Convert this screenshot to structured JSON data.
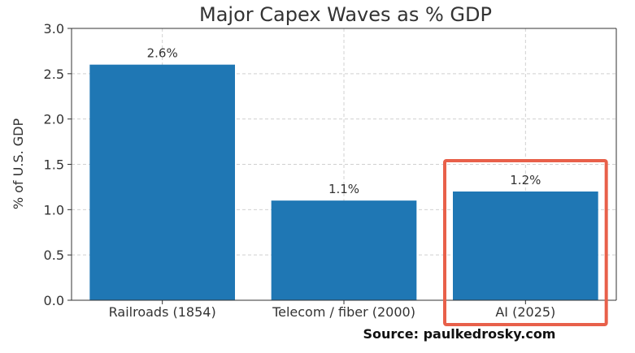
{
  "chart_data": {
    "type": "bar",
    "title": "Major Capex Waves as % GDP",
    "xlabel": "",
    "ylabel": "% of U.S. GDP",
    "categories": [
      "Railroads (1854)",
      "Telecom / fiber (2000)",
      "AI (2025)"
    ],
    "values": [
      2.6,
      1.1,
      1.2
    ],
    "data_labels": [
      "2.6%",
      "1.1%",
      "1.2%"
    ],
    "ylim": [
      0,
      3.0
    ],
    "yticks": [
      0.0,
      0.5,
      1.0,
      1.5,
      2.0,
      2.5,
      3.0
    ],
    "ytick_labels": [
      "0.0",
      "0.5",
      "1.0",
      "1.5",
      "2.0",
      "2.5",
      "3.0"
    ],
    "grid": true,
    "bar_color": "#1f77b4",
    "highlight": {
      "category": "AI (2025)",
      "color": "#e8604a"
    }
  },
  "source": "Source: paulkedrosky.com"
}
